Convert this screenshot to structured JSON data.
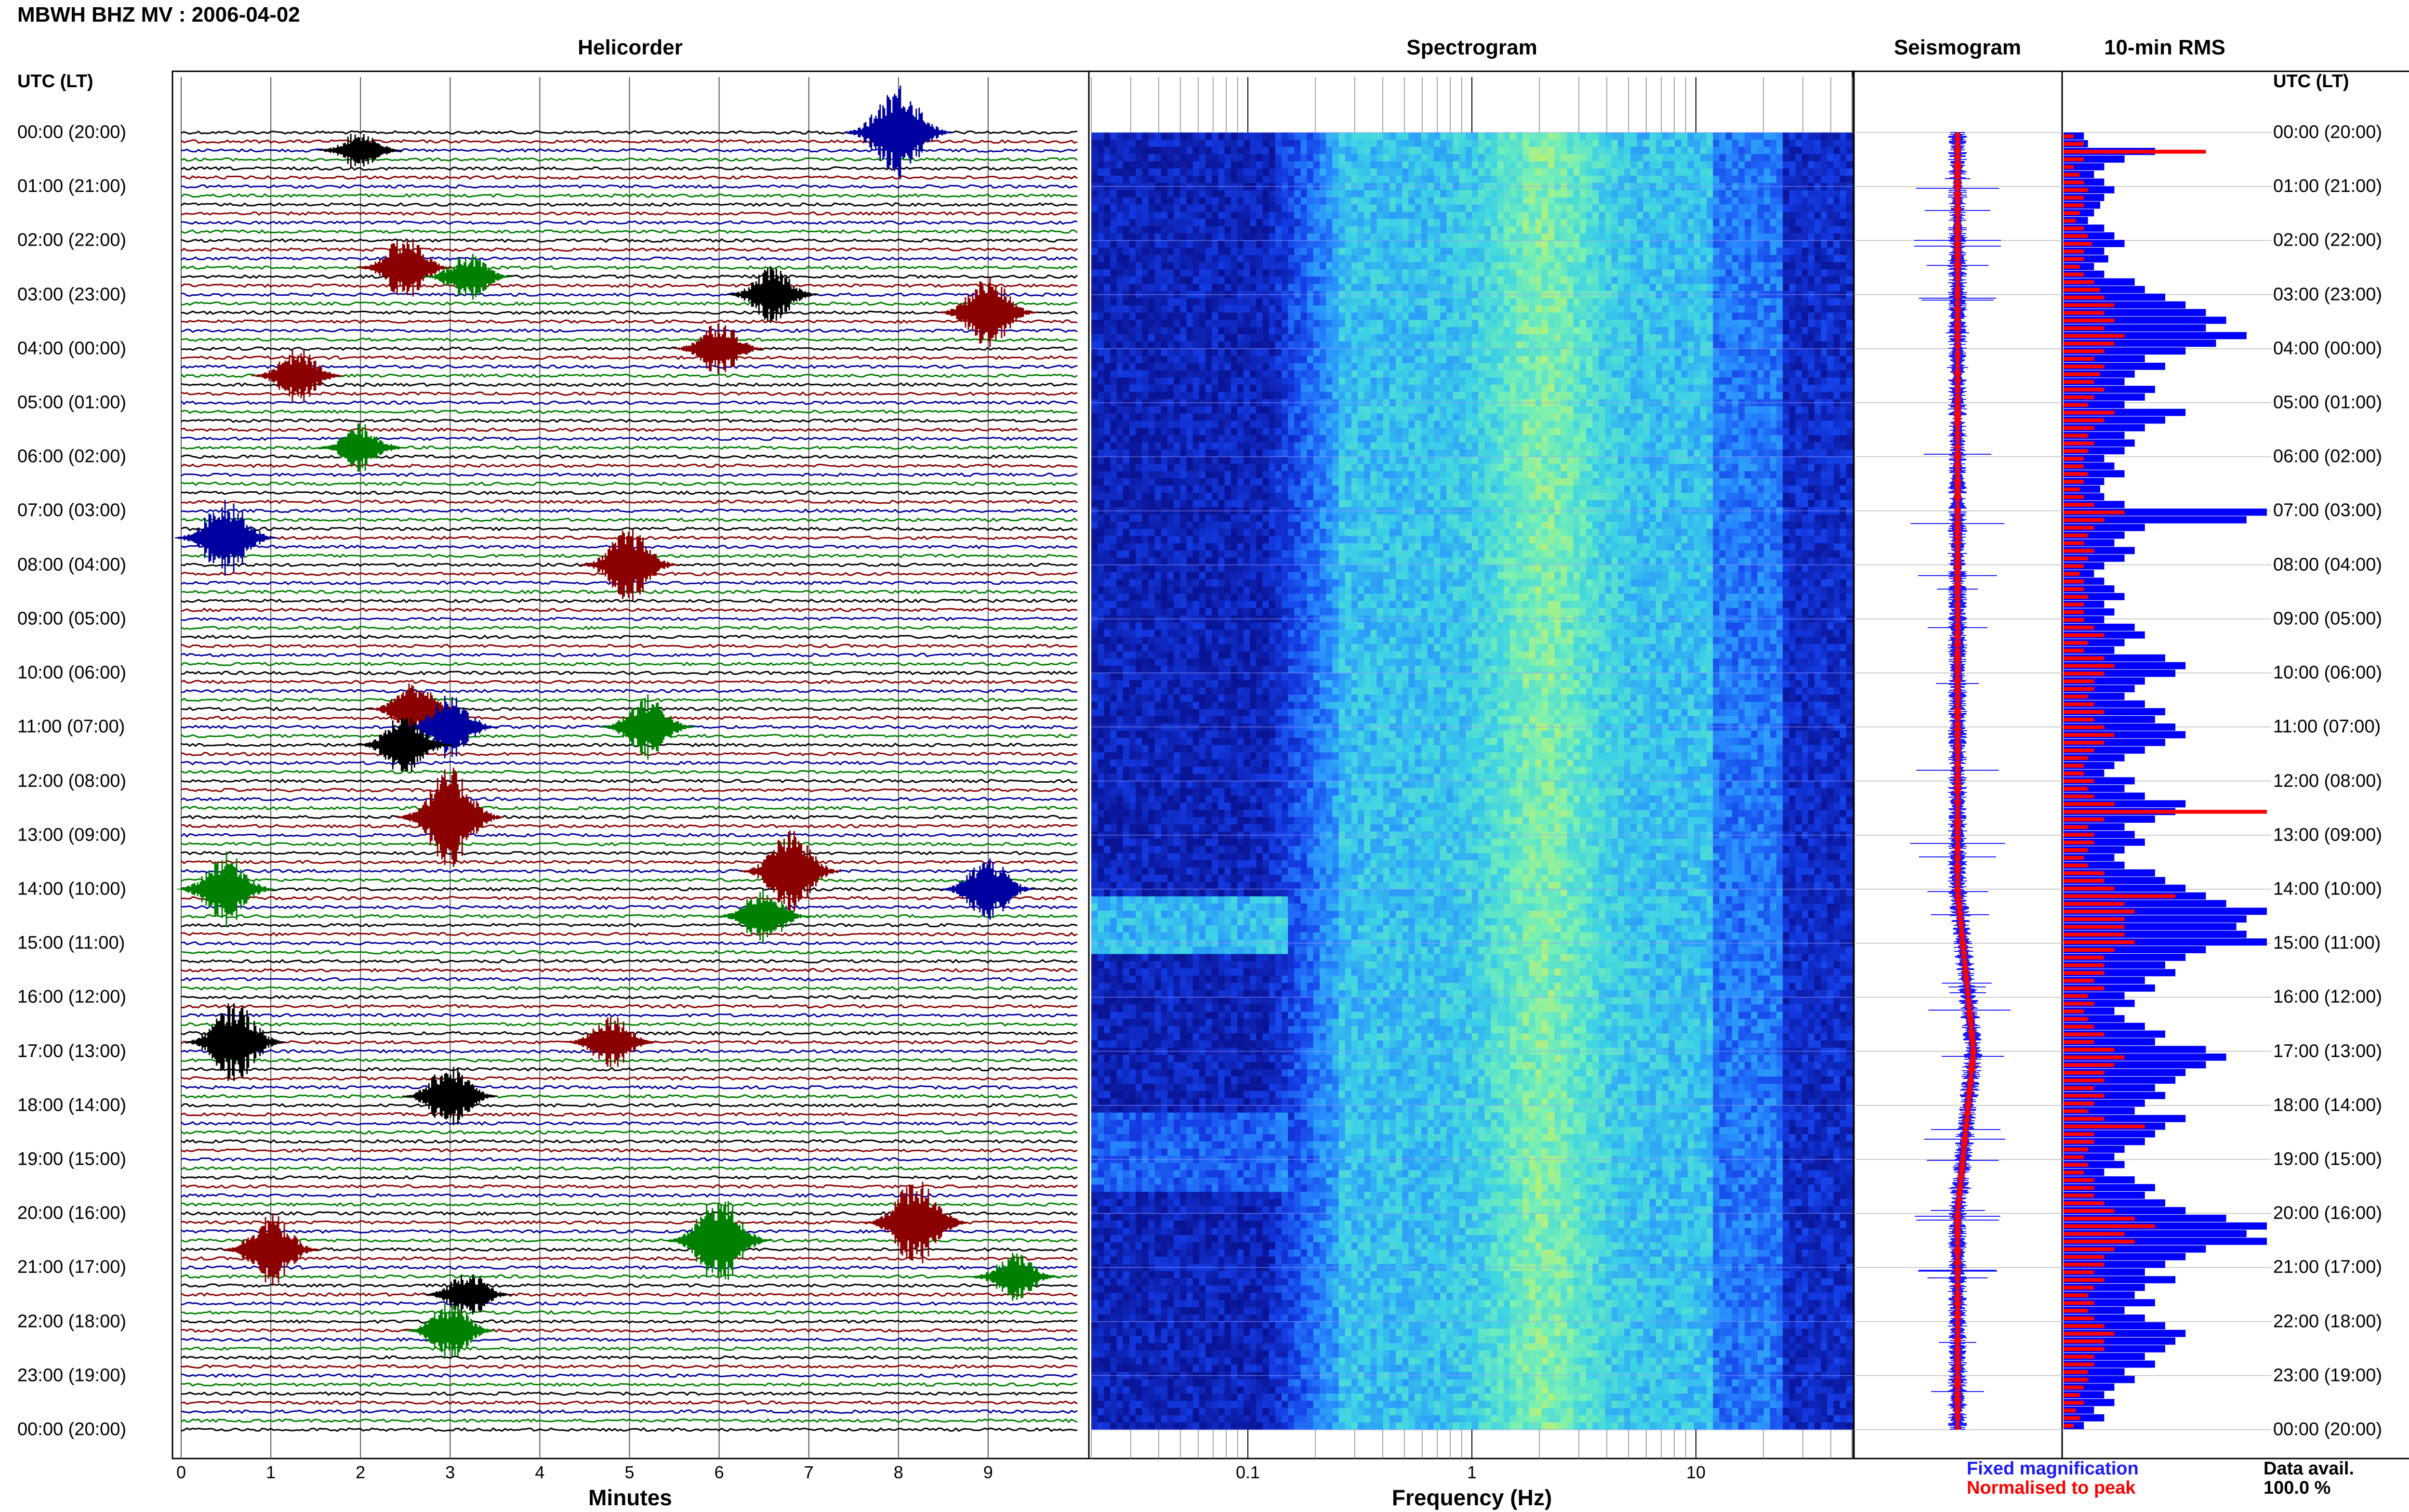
{
  "title": "MBWH BHZ MV : 2006-04-02",
  "panels": {
    "helicorder": "Helicorder",
    "spectrogram": "Spectrogram",
    "seismogram": "Seismogram",
    "rms": "10-min RMS"
  },
  "time_header": "UTC (LT)",
  "time_labels": [
    "00:00 (20:00)",
    "01:00 (21:00)",
    "02:00 (22:00)",
    "03:00 (23:00)",
    "04:00 (00:00)",
    "05:00 (01:00)",
    "06:00 (02:00)",
    "07:00 (03:00)",
    "08:00 (04:00)",
    "09:00 (05:00)",
    "10:00 (06:00)",
    "11:00 (07:00)",
    "12:00 (08:00)",
    "13:00 (09:00)",
    "14:00 (10:00)",
    "15:00 (11:00)",
    "16:00 (12:00)",
    "17:00 (13:00)",
    "18:00 (14:00)",
    "19:00 (15:00)",
    "20:00 (16:00)",
    "21:00 (17:00)",
    "22:00 (18:00)",
    "23:00 (19:00)",
    "00:00 (20:00)"
  ],
  "minutes_axis": {
    "label": "Minutes",
    "ticks": [
      "0",
      "1",
      "2",
      "3",
      "4",
      "5",
      "6",
      "7",
      "8",
      "9"
    ]
  },
  "frequency_axis": {
    "label": "Frequency (Hz)",
    "ticks": [
      "0.1",
      "1",
      "10"
    ]
  },
  "legend": {
    "fixed": "Fixed magnification",
    "normalised": "Normalised to peak",
    "fixed_color": "#1a1aff",
    "normalised_color": "#ff0000"
  },
  "data_avail": {
    "label": "Data avail.",
    "value": "100.0 %"
  },
  "colors": {
    "helicorder_traces": [
      "#000000",
      "#8b0000",
      "#0000a0",
      "#008000"
    ],
    "spectrogram_base": "#0a1ed0",
    "rms_fixed": "#0000ff",
    "rms_normalised": "#ff0000"
  },
  "chart_data": [
    {
      "type": "line",
      "name": "helicorder",
      "xlabel": "Minutes",
      "xlim": [
        0,
        10
      ],
      "lines_per_hour": 6,
      "hours": 24,
      "events": [
        {
          "hour": 0.0,
          "minute": 8.0,
          "amp": 1.0,
          "color": "#0000a0"
        },
        {
          "hour": 0.33,
          "minute": 2.0,
          "amp": 0.3,
          "color": "#000000"
        },
        {
          "hour": 2.5,
          "minute": 2.5,
          "amp": 0.6,
          "color": "#8b0000"
        },
        {
          "hour": 2.67,
          "minute": 3.2,
          "amp": 0.4,
          "color": "#008000"
        },
        {
          "hour": 3.0,
          "minute": 6.6,
          "amp": 0.5,
          "color": "#000000"
        },
        {
          "hour": 3.33,
          "minute": 9.0,
          "amp": 0.7,
          "color": "#8b0000"
        },
        {
          "hour": 4.0,
          "minute": 6.0,
          "amp": 0.5,
          "color": "#8b0000"
        },
        {
          "hour": 4.5,
          "minute": 1.3,
          "amp": 0.5,
          "color": "#8b0000"
        },
        {
          "hour": 5.83,
          "minute": 2.0,
          "amp": 0.4,
          "color": "#008000"
        },
        {
          "hour": 7.5,
          "minute": 0.5,
          "amp": 0.8,
          "color": "#0000a0"
        },
        {
          "hour": 8.0,
          "minute": 5.0,
          "amp": 0.7,
          "color": "#8b0000"
        },
        {
          "hour": 10.67,
          "minute": 2.6,
          "amp": 0.5,
          "color": "#8b0000"
        },
        {
          "hour": 11.0,
          "minute": 3.0,
          "amp": 0.6,
          "color": "#0000a0"
        },
        {
          "hour": 11.0,
          "minute": 5.2,
          "amp": 0.6,
          "color": "#008000"
        },
        {
          "hour": 11.33,
          "minute": 2.5,
          "amp": 0.6,
          "color": "#000000"
        },
        {
          "hour": 12.67,
          "minute": 3.0,
          "amp": 1.0,
          "color": "#8b0000"
        },
        {
          "hour": 13.67,
          "minute": 6.8,
          "amp": 0.8,
          "color": "#8b0000"
        },
        {
          "hour": 14.0,
          "minute": 0.5,
          "amp": 0.7,
          "color": "#008000"
        },
        {
          "hour": 14.0,
          "minute": 9.0,
          "amp": 0.6,
          "color": "#0000a0"
        },
        {
          "hour": 14.5,
          "minute": 6.5,
          "amp": 0.5,
          "color": "#008000"
        },
        {
          "hour": 16.83,
          "minute": 0.6,
          "amp": 0.8,
          "color": "#000000"
        },
        {
          "hour": 16.83,
          "minute": 4.8,
          "amp": 0.5,
          "color": "#8b0000"
        },
        {
          "hour": 17.83,
          "minute": 3.0,
          "amp": 0.6,
          "color": "#000000"
        },
        {
          "hour": 20.17,
          "minute": 8.2,
          "amp": 0.9,
          "color": "#8b0000"
        },
        {
          "hour": 20.5,
          "minute": 6.0,
          "amp": 0.9,
          "color": "#008000"
        },
        {
          "hour": 20.67,
          "minute": 1.0,
          "amp": 0.7,
          "color": "#8b0000"
        },
        {
          "hour": 21.17,
          "minute": 9.3,
          "amp": 0.4,
          "color": "#008000"
        },
        {
          "hour": 21.5,
          "minute": 3.2,
          "amp": 0.4,
          "color": "#000000"
        },
        {
          "hour": 22.17,
          "minute": 3.0,
          "amp": 0.5,
          "color": "#008000"
        }
      ]
    },
    {
      "type": "heatmap",
      "name": "spectrogram",
      "xlabel": "Frequency (Hz)",
      "xscale": "log",
      "xlim": [
        0.02,
        50
      ],
      "bright_band_hz": [
        1.5,
        3.0
      ]
    },
    {
      "type": "line",
      "name": "seismogram",
      "drift_hours": [
        [
          0,
          0
        ],
        [
          14,
          0
        ],
        [
          16,
          1
        ],
        [
          17,
          1.5
        ],
        [
          18,
          1
        ],
        [
          20,
          0
        ],
        [
          24,
          0
        ]
      ]
    },
    {
      "type": "bar",
      "name": "10-min RMS",
      "series": [
        {
          "name": "Fixed magnification",
          "values": [
            0.1,
            0.12,
            0.45,
            0.3,
            0.2,
            0.15,
            0.2,
            0.25,
            0.2,
            0.18,
            0.15,
            0.12,
            0.2,
            0.25,
            0.3,
            0.2,
            0.22,
            0.15,
            0.2,
            0.35,
            0.4,
            0.5,
            0.6,
            0.7,
            0.8,
            0.7,
            0.9,
            0.75,
            0.6,
            0.4,
            0.5,
            0.35,
            0.3,
            0.45,
            0.4,
            0.3,
            0.6,
            0.5,
            0.4,
            0.3,
            0.35,
            0.3,
            0.2,
            0.25,
            0.3,
            0.2,
            0.18,
            0.2,
            0.3,
            1.0,
            0.9,
            0.4,
            0.3,
            0.25,
            0.35,
            0.3,
            0.2,
            0.15,
            0.2,
            0.25,
            0.3,
            0.2,
            0.25,
            0.2,
            0.35,
            0.4,
            0.3,
            0.25,
            0.5,
            0.6,
            0.55,
            0.4,
            0.35,
            0.3,
            0.4,
            0.5,
            0.45,
            0.55,
            0.6,
            0.5,
            0.4,
            0.3,
            0.25,
            0.2,
            0.35,
            0.3,
            0.4,
            0.6,
            0.55,
            0.45,
            0.3,
            0.35,
            0.4,
            0.3,
            0.25,
            0.3,
            0.45,
            0.5,
            0.6,
            0.7,
            0.8,
            1.0,
            0.9,
            0.85,
            0.9,
            1.0,
            0.7,
            0.6,
            0.5,
            0.55,
            0.4,
            0.45,
            0.3,
            0.35,
            0.25,
            0.3,
            0.4,
            0.5,
            0.45,
            0.7,
            0.8,
            0.7,
            0.6,
            0.55,
            0.45,
            0.5,
            0.4,
            0.35,
            0.6,
            0.5,
            0.45,
            0.4,
            0.3,
            0.25,
            0.3,
            0.2,
            0.35,
            0.45,
            0.4,
            0.5,
            0.6,
            0.8,
            1.0,
            0.9,
            1.0,
            0.7,
            0.6,
            0.5,
            0.4,
            0.55,
            0.4,
            0.35,
            0.45,
            0.3,
            0.4,
            0.5,
            0.6,
            0.55,
            0.5,
            0.4,
            0.45,
            0.3,
            0.35,
            0.25,
            0.2,
            0.25,
            0.15,
            0.2,
            0.1
          ]
        },
        {
          "name": "Normalised to peak",
          "values": [
            0.05,
            0.1,
            0.7,
            0.1,
            0.05,
            0.08,
            0.1,
            0.12,
            0.1,
            0.1,
            0.08,
            0.06,
            0.1,
            0.12,
            0.14,
            0.1,
            0.1,
            0.08,
            0.1,
            0.15,
            0.18,
            0.2,
            0.25,
            0.2,
            0.25,
            0.2,
            0.3,
            0.25,
            0.2,
            0.15,
            0.2,
            0.18,
            0.15,
            0.2,
            0.15,
            0.12,
            0.25,
            0.2,
            0.15,
            0.12,
            0.15,
            0.12,
            0.1,
            0.1,
            0.12,
            0.1,
            0.08,
            0.1,
            0.15,
            0.3,
            0.2,
            0.15,
            0.12,
            0.1,
            0.15,
            0.12,
            0.1,
            0.08,
            0.1,
            0.1,
            0.12,
            0.1,
            0.1,
            0.1,
            0.15,
            0.2,
            0.12,
            0.1,
            0.2,
            0.25,
            0.2,
            0.15,
            0.15,
            0.12,
            0.15,
            0.2,
            0.15,
            0.2,
            0.25,
            0.2,
            0.15,
            0.12,
            0.1,
            0.1,
            0.15,
            0.12,
            0.15,
            0.25,
            1.0,
            0.2,
            0.12,
            0.15,
            0.15,
            0.12,
            0.1,
            0.12,
            0.2,
            0.2,
            0.25,
            0.55,
            0.3,
            0.35,
            0.3,
            0.3,
            0.3,
            0.35,
            0.25,
            0.2,
            0.2,
            0.2,
            0.15,
            0.2,
            0.12,
            0.15,
            0.1,
            0.12,
            0.15,
            0.2,
            0.15,
            0.25,
            0.3,
            0.25,
            0.2,
            0.2,
            0.15,
            0.2,
            0.15,
            0.12,
            0.2,
            0.4,
            0.15,
            0.15,
            0.12,
            0.1,
            0.12,
            0.1,
            0.15,
            0.15,
            0.15,
            0.2,
            0.25,
            0.35,
            0.45,
            0.3,
            0.35,
            0.25,
            0.2,
            0.2,
            0.15,
            0.2,
            0.15,
            0.12,
            0.15,
            0.12,
            0.15,
            0.2,
            0.25,
            0.2,
            0.2,
            0.15,
            0.15,
            0.12,
            0.12,
            0.1,
            0.08,
            0.1,
            0.06,
            0.08,
            0.05
          ]
        }
      ]
    }
  ]
}
